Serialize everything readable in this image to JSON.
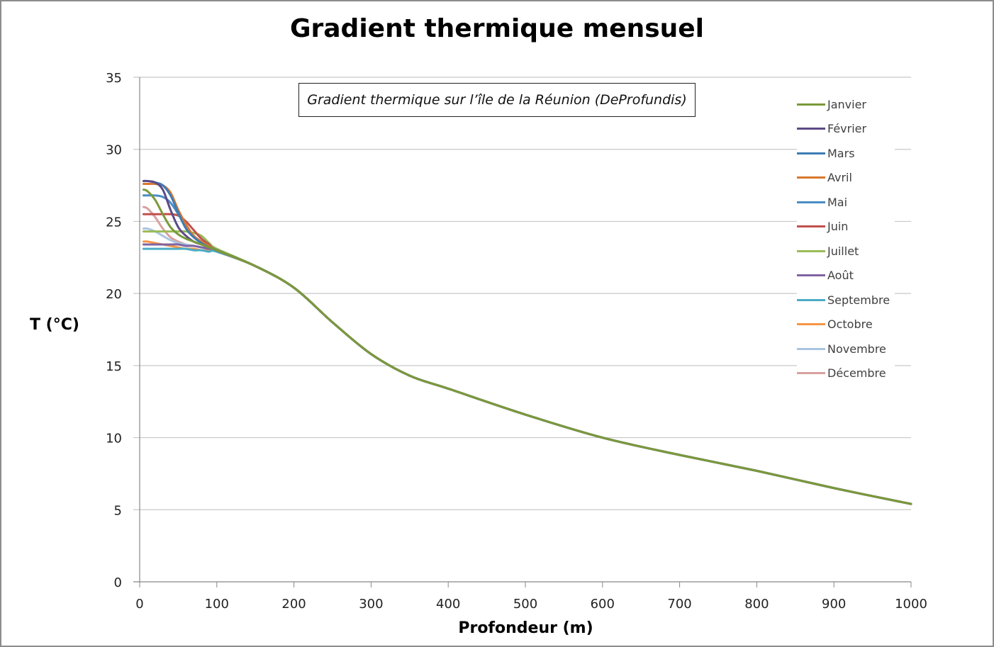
{
  "chart_data": {
    "type": "line",
    "title": "Gradient thermique mensuel",
    "annotation": "Gradient thermique sur l’île de la Réunion (DeProfundis)",
    "xlabel": "Profondeur (m)",
    "ylabel": "T (°C)",
    "xlim": [
      0,
      1000
    ],
    "ylim": [
      0,
      35
    ],
    "xticks": [
      "0",
      "100",
      "200",
      "300",
      "400",
      "500",
      "600",
      "700",
      "800",
      "900",
      "1000"
    ],
    "yticks": [
      "0",
      "5",
      "10",
      "15",
      "20",
      "25",
      "30",
      "35"
    ],
    "grid": "horizontal",
    "legend_position": "right",
    "shallow_x": [
      5,
      10,
      20,
      30,
      40,
      50,
      60,
      70,
      80,
      90,
      100
    ],
    "deep_x": [
      150,
      200,
      250,
      300,
      350,
      400,
      500,
      600,
      700,
      800,
      900,
      1000
    ],
    "deep_values": [
      21.9,
      20.4,
      18.0,
      15.8,
      14.3,
      13.4,
      11.6,
      10.0,
      8.8,
      7.7,
      6.5,
      5.4
    ],
    "series": [
      {
        "name": "Janvier",
        "color": "#7A9A3A",
        "values": [
          27.2,
          27.1,
          26.5,
          25.5,
          24.6,
          24.1,
          23.8,
          23.6,
          23.4,
          23.2,
          23.0
        ]
      },
      {
        "name": "Février",
        "color": "#5C4A86",
        "values": [
          27.8,
          27.8,
          27.7,
          27.2,
          25.8,
          24.6,
          24.0,
          23.6,
          23.4,
          23.2,
          23.0
        ]
      },
      {
        "name": "Mars",
        "color": "#3C7CB5",
        "values": [
          27.8,
          27.8,
          27.7,
          27.5,
          26.8,
          25.6,
          24.5,
          23.9,
          23.5,
          23.2,
          23.0
        ]
      },
      {
        "name": "Avril",
        "color": "#D9772F",
        "values": [
          27.6,
          27.6,
          27.6,
          27.5,
          27.0,
          25.8,
          24.8,
          24.0,
          23.6,
          23.3,
          23.0
        ]
      },
      {
        "name": "Mai",
        "color": "#4A8DC4",
        "values": [
          26.8,
          26.8,
          26.8,
          26.7,
          26.3,
          25.5,
          24.6,
          24.0,
          23.6,
          23.3,
          23.0
        ]
      },
      {
        "name": "Juin",
        "color": "#C0504D",
        "values": [
          25.5,
          25.5,
          25.5,
          25.5,
          25.5,
          25.4,
          25.0,
          24.4,
          23.8,
          23.4,
          23.0
        ]
      },
      {
        "name": "Juillet",
        "color": "#9BBB59",
        "values": [
          24.3,
          24.3,
          24.3,
          24.3,
          24.3,
          24.3,
          24.3,
          24.2,
          24.0,
          23.5,
          23.1
        ]
      },
      {
        "name": "Août",
        "color": "#8064A2",
        "values": [
          23.4,
          23.4,
          23.4,
          23.4,
          23.4,
          23.4,
          23.3,
          23.3,
          23.2,
          23.1,
          23.0
        ]
      },
      {
        "name": "Septembre",
        "color": "#4BACC6",
        "values": [
          23.1,
          23.1,
          23.1,
          23.1,
          23.1,
          23.1,
          23.1,
          23.0,
          23.0,
          22.9,
          22.9
        ]
      },
      {
        "name": "Octobre",
        "color": "#F79646",
        "values": [
          23.6,
          23.6,
          23.5,
          23.4,
          23.3,
          23.2,
          23.1,
          23.1,
          23.0,
          23.0,
          22.9
        ]
      },
      {
        "name": "Novembre",
        "color": "#A9C4E0",
        "values": [
          24.5,
          24.5,
          24.3,
          24.0,
          23.7,
          23.5,
          23.4,
          23.3,
          23.2,
          23.1,
          23.0
        ]
      },
      {
        "name": "Décembre",
        "color": "#D9A0A0",
        "values": [
          26.0,
          25.9,
          25.3,
          24.5,
          23.9,
          23.6,
          23.4,
          23.3,
          23.2,
          23.1,
          23.0
        ]
      }
    ]
  }
}
